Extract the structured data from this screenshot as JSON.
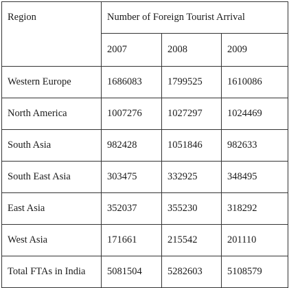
{
  "table": {
    "header": {
      "region_label": "Region",
      "group_label": "Number of Foreign Tourist Arrival",
      "years": [
        "2007",
        "2008",
        "2009"
      ]
    },
    "rows": [
      {
        "region": "Western Europe",
        "values": [
          "1686083",
          "1799525",
          "1610086"
        ]
      },
      {
        "region": "North America",
        "values": [
          "1007276",
          "1027297",
          "1024469"
        ]
      },
      {
        "region": "South Asia",
        "values": [
          "982428",
          "1051846",
          "982633"
        ]
      },
      {
        "region": "South East Asia",
        "values": [
          "303475",
          "332925",
          "348495"
        ]
      },
      {
        "region": "East Asia",
        "values": [
          "352037",
          "355230",
          "318292"
        ]
      },
      {
        "region": "West Asia",
        "values": [
          "171661",
          "215542",
          "201110"
        ]
      },
      {
        "region": "Total FTAs in India",
        "values": [
          "5081504",
          "5282603",
          "5108579"
        ]
      }
    ]
  }
}
